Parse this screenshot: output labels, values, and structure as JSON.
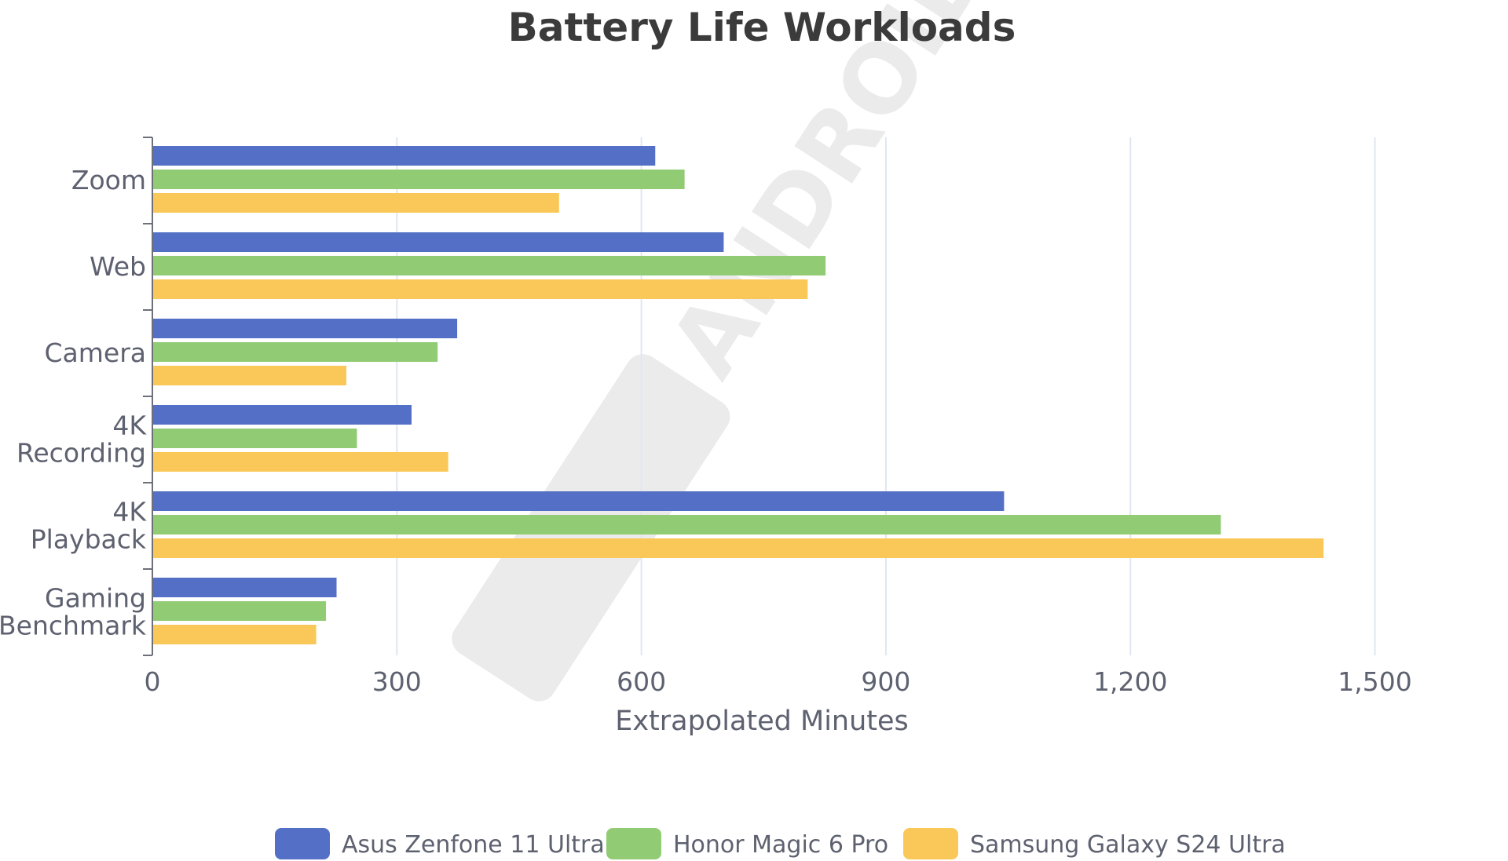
{
  "chart_data": {
    "type": "bar",
    "orientation": "horizontal",
    "title": "Battery Life Workloads",
    "xlabel": "Extrapolated Minutes",
    "ylabel": "",
    "xlim": [
      0,
      1650
    ],
    "xticks": [
      0,
      300,
      600,
      900,
      1200,
      1500
    ],
    "xtick_labels": [
      "0",
      "300",
      "600",
      "900",
      "1,200",
      "1,500"
    ],
    "grid": true,
    "legend_position": "bottom",
    "categories": [
      [
        "Zoom"
      ],
      [
        "Web"
      ],
      [
        "Camera"
      ],
      [
        "4K",
        "Recording"
      ],
      [
        "4K",
        "Playback"
      ],
      [
        "Gaming",
        "Benchmark"
      ]
    ],
    "series": [
      {
        "name": "Asus Zenfone 11 Ultra",
        "color": "#5470c6",
        "values": [
          617,
          701,
          374,
          318,
          1045,
          226
        ]
      },
      {
        "name": "Honor Magic 6 Pro",
        "color": "#91cc75",
        "values": [
          653,
          826,
          350,
          251,
          1311,
          213
        ]
      },
      {
        "name": "Samsung Galaxy S24 Ultra",
        "color": "#fac858",
        "values": [
          499,
          804,
          238,
          363,
          1437,
          201
        ]
      }
    ]
  },
  "watermark": {
    "text": "ANDROID AUTHORITY",
    "color": "#ebebeb"
  }
}
